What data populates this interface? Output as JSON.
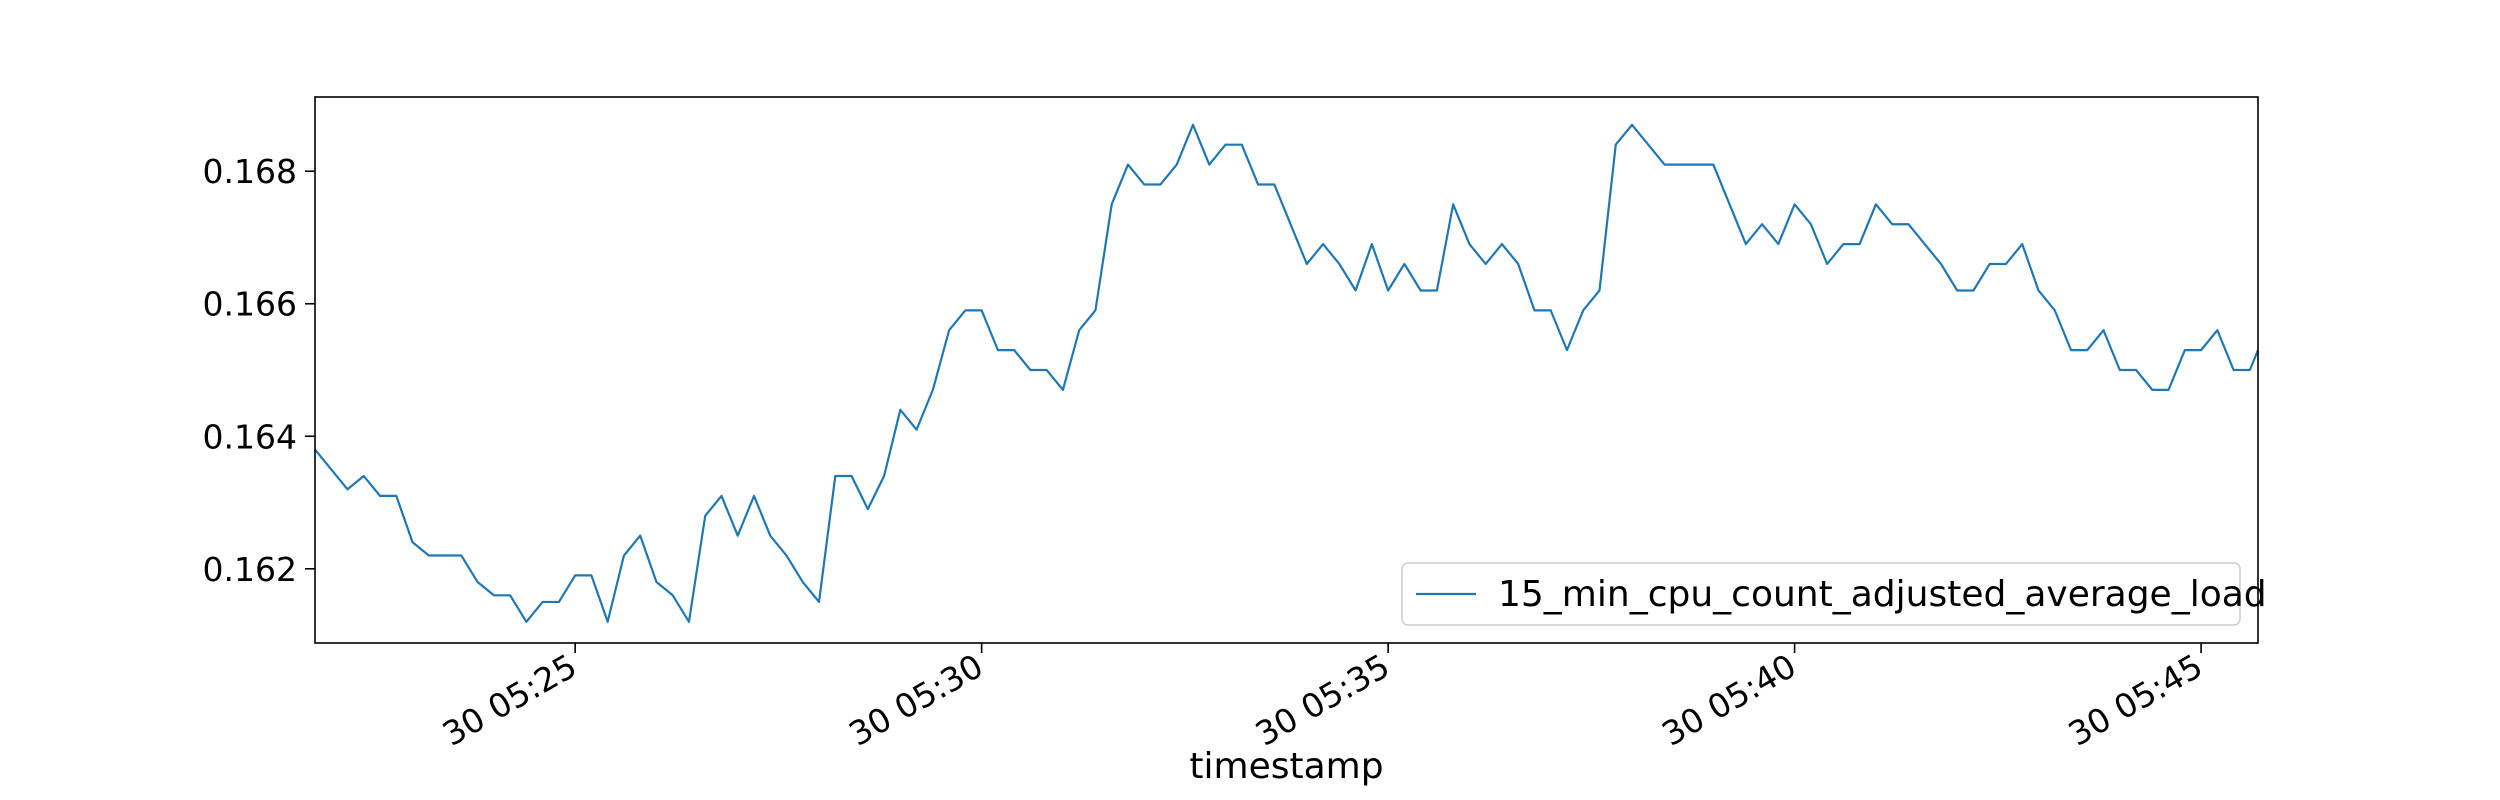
{
  "chart_data": {
    "type": "line",
    "title": "",
    "xlabel": "timestamp",
    "ylabel": "",
    "x_range": [
      "2024-01-30T05:21:48",
      "2024-01-30T05:45:42"
    ],
    "ylim": [
      0.16088,
      0.16912
    ],
    "x_ticks": [
      {
        "value": "2024-01-30T05:25:00",
        "label": "30 05:25"
      },
      {
        "value": "2024-01-30T05:30:00",
        "label": "30 05:30"
      },
      {
        "value": "2024-01-30T05:35:00",
        "label": "30 05:35"
      },
      {
        "value": "2024-01-30T05:40:00",
        "label": "30 05:40"
      },
      {
        "value": "2024-01-30T05:45:00",
        "label": "30 05:45"
      }
    ],
    "y_ticks": [
      {
        "value": 0.162,
        "label": "0.162"
      },
      {
        "value": 0.164,
        "label": "0.164"
      },
      {
        "value": 0.166,
        "label": "0.166"
      },
      {
        "value": 0.168,
        "label": "0.168"
      }
    ],
    "grid": false,
    "legend_position": "lower-right",
    "series": [
      {
        "name": "15_min_cpu_count_adjusted_average_load",
        "color": "#1f77b4",
        "x": [
          "2024-01-30T05:21:48",
          "2024-01-30T05:22:00",
          "2024-01-30T05:22:12",
          "2024-01-30T05:22:24",
          "2024-01-30T05:22:36",
          "2024-01-30T05:22:48",
          "2024-01-30T05:23:00",
          "2024-01-30T05:23:12",
          "2024-01-30T05:23:24",
          "2024-01-30T05:23:36",
          "2024-01-30T05:23:48",
          "2024-01-30T05:24:00",
          "2024-01-30T05:24:12",
          "2024-01-30T05:24:24",
          "2024-01-30T05:24:36",
          "2024-01-30T05:24:48",
          "2024-01-30T05:25:00",
          "2024-01-30T05:25:12",
          "2024-01-30T05:25:24",
          "2024-01-30T05:25:36",
          "2024-01-30T05:25:48",
          "2024-01-30T05:26:00",
          "2024-01-30T05:26:12",
          "2024-01-30T05:26:24",
          "2024-01-30T05:26:36",
          "2024-01-30T05:26:48",
          "2024-01-30T05:27:00",
          "2024-01-30T05:27:12",
          "2024-01-30T05:27:24",
          "2024-01-30T05:27:36",
          "2024-01-30T05:27:48",
          "2024-01-30T05:28:00",
          "2024-01-30T05:28:12",
          "2024-01-30T05:28:24",
          "2024-01-30T05:28:36",
          "2024-01-30T05:28:48",
          "2024-01-30T05:29:00",
          "2024-01-30T05:29:12",
          "2024-01-30T05:29:24",
          "2024-01-30T05:29:36",
          "2024-01-30T05:29:48",
          "2024-01-30T05:30:00",
          "2024-01-30T05:30:12",
          "2024-01-30T05:30:24",
          "2024-01-30T05:30:36",
          "2024-01-30T05:30:48",
          "2024-01-30T05:31:00",
          "2024-01-30T05:31:12",
          "2024-01-30T05:31:24",
          "2024-01-30T05:31:36",
          "2024-01-30T05:31:48",
          "2024-01-30T05:32:00",
          "2024-01-30T05:32:12",
          "2024-01-30T05:32:24",
          "2024-01-30T05:32:36",
          "2024-01-30T05:32:48",
          "2024-01-30T05:33:00",
          "2024-01-30T05:33:12",
          "2024-01-30T05:33:24",
          "2024-01-30T05:33:36",
          "2024-01-30T05:33:48",
          "2024-01-30T05:34:00",
          "2024-01-30T05:34:12",
          "2024-01-30T05:34:24",
          "2024-01-30T05:34:36",
          "2024-01-30T05:34:48",
          "2024-01-30T05:35:00",
          "2024-01-30T05:35:12",
          "2024-01-30T05:35:24",
          "2024-01-30T05:35:36",
          "2024-01-30T05:35:48",
          "2024-01-30T05:36:00",
          "2024-01-30T05:36:12",
          "2024-01-30T05:36:24",
          "2024-01-30T05:36:36",
          "2024-01-30T05:36:48",
          "2024-01-30T05:37:00",
          "2024-01-30T05:37:12",
          "2024-01-30T05:37:24",
          "2024-01-30T05:37:36",
          "2024-01-30T05:37:48",
          "2024-01-30T05:38:00",
          "2024-01-30T05:38:12",
          "2024-01-30T05:38:24",
          "2024-01-30T05:38:36",
          "2024-01-30T05:38:48",
          "2024-01-30T05:39:00",
          "2024-01-30T05:39:12",
          "2024-01-30T05:39:24",
          "2024-01-30T05:39:36",
          "2024-01-30T05:39:48",
          "2024-01-30T05:40:00",
          "2024-01-30T05:40:12",
          "2024-01-30T05:40:24",
          "2024-01-30T05:40:36",
          "2024-01-30T05:40:48",
          "2024-01-30T05:41:00",
          "2024-01-30T05:41:12",
          "2024-01-30T05:41:24",
          "2024-01-30T05:41:36",
          "2024-01-30T05:41:48",
          "2024-01-30T05:42:00",
          "2024-01-30T05:42:12",
          "2024-01-30T05:42:24",
          "2024-01-30T05:42:36",
          "2024-01-30T05:42:48",
          "2024-01-30T05:43:00",
          "2024-01-30T05:43:12",
          "2024-01-30T05:43:24",
          "2024-01-30T05:43:36",
          "2024-01-30T05:43:48",
          "2024-01-30T05:44:00",
          "2024-01-30T05:44:12",
          "2024-01-30T05:44:24",
          "2024-01-30T05:44:36",
          "2024-01-30T05:44:48",
          "2024-01-30T05:45:00",
          "2024-01-30T05:45:12",
          "2024-01-30T05:45:24",
          "2024-01-30T05:45:36",
          "2024-01-30T05:45:42"
        ],
        "y": [
          0.1638,
          0.1635,
          0.1632,
          0.1634,
          0.1631,
          0.1631,
          0.1624,
          0.1622,
          0.1622,
          0.1622,
          0.1618,
          0.1616,
          0.1616,
          0.1612,
          0.1615,
          0.1615,
          0.1619,
          0.1619,
          0.1612,
          0.1622,
          0.1625,
          0.1618,
          0.1616,
          0.1612,
          0.1628,
          0.1631,
          0.1625,
          0.1631,
          0.1625,
          0.1622,
          0.1618,
          0.1615,
          0.1634,
          0.1634,
          0.1629,
          0.1634,
          0.1644,
          0.1641,
          0.1647,
          0.1656,
          0.1659,
          0.1659,
          0.1653,
          0.1653,
          0.165,
          0.165,
          0.1647,
          0.1656,
          0.1659,
          0.1675,
          0.1681,
          0.1678,
          0.1678,
          0.1681,
          0.1687,
          0.1681,
          0.1684,
          0.1684,
          0.1678,
          0.1678,
          0.1672,
          0.1666,
          0.1669,
          0.1666,
          0.1662,
          0.1669,
          0.1662,
          0.1666,
          0.1662,
          0.1662,
          0.1675,
          0.1669,
          0.1666,
          0.1669,
          0.1666,
          0.1659,
          0.1659,
          0.1653,
          0.1659,
          0.1662,
          0.1684,
          0.1687,
          0.1684,
          0.1681,
          0.1681,
          0.1681,
          0.1681,
          0.1675,
          0.1669,
          0.1672,
          0.1669,
          0.1675,
          0.1672,
          0.1666,
          0.1669,
          0.1669,
          0.1675,
          0.1672,
          0.1672,
          0.1669,
          0.1666,
          0.1662,
          0.1662,
          0.1666,
          0.1666,
          0.1669,
          0.1662,
          0.1659,
          0.1653,
          0.1653,
          0.1656,
          0.165,
          0.165,
          0.1647,
          0.1647,
          0.1653,
          0.1653,
          0.1656,
          0.165,
          0.165,
          0.1653
        ]
      }
    ]
  }
}
